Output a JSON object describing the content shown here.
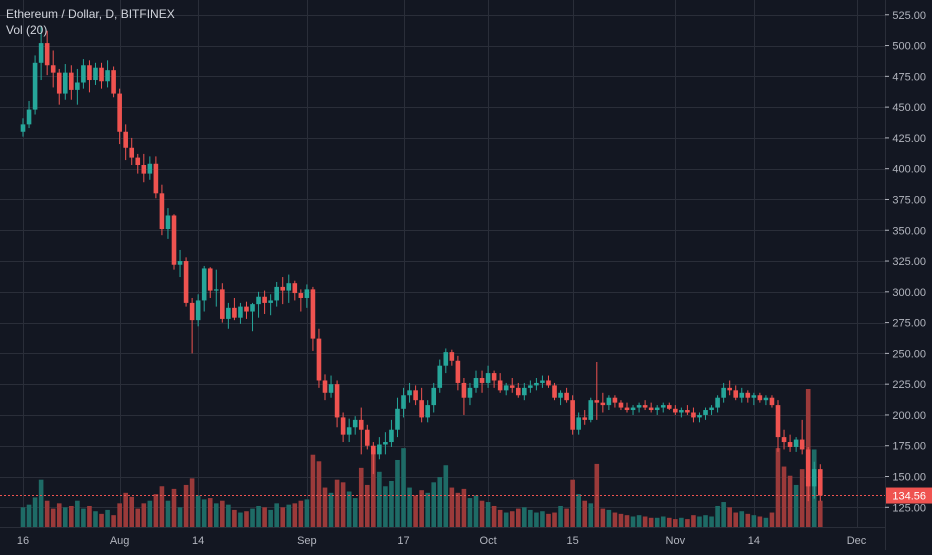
{
  "header": {
    "symbol_line": "Ethereum / Dollar, D, BITFINEX",
    "indicator_line": "Vol (20)"
  },
  "colors": {
    "background": "#131722",
    "grid": "#2a2e39",
    "text": "#b2b5be",
    "up": "#26a69a",
    "down": "#ef5350",
    "vol_up": "#1e6b66",
    "vol_down": "#9b3a3a",
    "price_line": "#ef5350"
  },
  "chart_data": {
    "type": "candlestick",
    "title": "Ethereum / Dollar, D, BITFINEX",
    "y_axis_ticks": [
      "525.00",
      "500.00",
      "475.00",
      "450.00",
      "425.00",
      "400.00",
      "375.00",
      "350.00",
      "325.00",
      "300.00",
      "275.00",
      "250.00",
      "225.00",
      "200.00",
      "175.00",
      "150.00",
      "125.00"
    ],
    "y_tick_values": [
      525,
      500,
      475,
      450,
      425,
      400,
      375,
      350,
      325,
      300,
      275,
      250,
      225,
      200,
      175,
      150,
      125
    ],
    "ylim": [
      109,
      537
    ],
    "x_axis_labels": [
      {
        "label": "16",
        "index": 0
      },
      {
        "label": "Aug",
        "index": 16
      },
      {
        "label": "14",
        "index": 29
      },
      {
        "label": "Sep",
        "index": 47
      },
      {
        "label": "17",
        "index": 63
      },
      {
        "label": "Oct",
        "index": 77
      },
      {
        "label": "15",
        "index": 91
      },
      {
        "label": "Nov",
        "index": 108
      },
      {
        "label": "14",
        "index": 121
      },
      {
        "label": "Dec",
        "index": 138
      }
    ],
    "last_price": 134.56,
    "last_price_label": "134.56",
    "series_ohlc_v": [
      [
        430,
        441,
        426,
        436,
        30
      ],
      [
        436,
        455,
        433,
        448,
        34
      ],
      [
        448,
        492,
        444,
        486,
        45
      ],
      [
        486,
        516,
        472,
        502,
        72
      ],
      [
        502,
        512,
        476,
        484,
        40
      ],
      [
        484,
        496,
        466,
        478,
        28
      ],
      [
        478,
        481,
        452,
        461,
        36
      ],
      [
        461,
        485,
        456,
        478,
        30
      ],
      [
        478,
        484,
        456,
        464,
        32
      ],
      [
        464,
        481,
        452,
        470,
        40
      ],
      [
        470,
        489,
        465,
        484,
        28
      ],
      [
        484,
        488,
        462,
        472,
        32
      ],
      [
        472,
        486,
        468,
        482,
        24
      ],
      [
        482,
        486,
        465,
        471,
        20
      ],
      [
        471,
        488,
        466,
        480,
        26
      ],
      [
        480,
        483,
        458,
        461,
        18
      ],
      [
        461,
        465,
        420,
        430,
        36
      ],
      [
        430,
        436,
        407,
        417,
        52
      ],
      [
        417,
        425,
        403,
        409,
        46
      ],
      [
        409,
        412,
        396,
        403,
        28
      ],
      [
        403,
        412,
        389,
        396,
        36
      ],
      [
        396,
        410,
        391,
        404,
        40
      ],
      [
        404,
        410,
        376,
        380,
        50
      ],
      [
        380,
        387,
        346,
        351,
        62
      ],
      [
        351,
        368,
        343,
        362,
        40
      ],
      [
        362,
        363,
        318,
        322,
        58
      ],
      [
        322,
        334,
        312,
        325,
        30
      ],
      [
        325,
        328,
        288,
        291,
        64
      ],
      [
        291,
        295,
        250,
        277,
        74
      ],
      [
        277,
        298,
        272,
        293,
        48
      ],
      [
        293,
        321,
        284,
        319,
        42
      ],
      [
        319,
        320,
        295,
        301,
        44
      ],
      [
        301,
        318,
        288,
        302,
        36
      ],
      [
        302,
        307,
        275,
        278,
        40
      ],
      [
        278,
        291,
        270,
        287,
        34
      ],
      [
        287,
        295,
        277,
        279,
        26
      ],
      [
        279,
        291,
        274,
        288,
        22
      ],
      [
        288,
        292,
        278,
        284,
        24
      ],
      [
        284,
        291,
        268,
        290,
        28
      ],
      [
        290,
        300,
        279,
        296,
        32
      ],
      [
        296,
        301,
        282,
        291,
        30
      ],
      [
        291,
        298,
        281,
        293,
        26
      ],
      [
        293,
        308,
        288,
        304,
        36
      ],
      [
        304,
        312,
        290,
        301,
        30
      ],
      [
        301,
        314,
        291,
        307,
        34
      ],
      [
        307,
        309,
        293,
        299,
        36
      ],
      [
        299,
        302,
        284,
        295,
        40
      ],
      [
        295,
        306,
        287,
        302,
        42
      ],
      [
        302,
        304,
        252,
        262,
        110
      ],
      [
        262,
        270,
        222,
        228,
        100
      ],
      [
        228,
        233,
        212,
        218,
        60
      ],
      [
        218,
        232,
        214,
        225,
        52
      ],
      [
        225,
        228,
        190,
        198,
        72
      ],
      [
        198,
        202,
        178,
        184,
        68
      ],
      [
        184,
        197,
        178,
        190,
        54
      ],
      [
        190,
        199,
        184,
        196,
        44
      ],
      [
        196,
        206,
        168,
        188,
        90
      ],
      [
        188,
        192,
        172,
        175,
        64
      ],
      [
        175,
        178,
        152,
        168,
        120
      ],
      [
        168,
        182,
        164,
        176,
        84
      ],
      [
        176,
        186,
        168,
        178,
        62
      ],
      [
        178,
        196,
        174,
        188,
        70
      ],
      [
        188,
        214,
        182,
        205,
        102
      ],
      [
        205,
        222,
        198,
        216,
        120
      ],
      [
        216,
        226,
        210,
        220,
        60
      ],
      [
        220,
        224,
        208,
        212,
        48
      ],
      [
        212,
        222,
        194,
        198,
        56
      ],
      [
        198,
        212,
        194,
        208,
        52
      ],
      [
        208,
        226,
        202,
        222,
        68
      ],
      [
        222,
        245,
        218,
        240,
        76
      ],
      [
        240,
        254,
        234,
        251,
        94
      ],
      [
        251,
        253,
        240,
        244,
        60
      ],
      [
        244,
        248,
        220,
        226,
        52
      ],
      [
        226,
        230,
        200,
        214,
        58
      ],
      [
        214,
        226,
        208,
        222,
        44
      ],
      [
        222,
        236,
        218,
        230,
        48
      ],
      [
        230,
        236,
        218,
        226,
        40
      ],
      [
        226,
        240,
        222,
        234,
        38
      ],
      [
        234,
        236,
        222,
        228,
        32
      ],
      [
        228,
        234,
        218,
        220,
        26
      ],
      [
        220,
        226,
        216,
        224,
        22
      ],
      [
        224,
        230,
        218,
        222,
        24
      ],
      [
        222,
        226,
        214,
        216,
        28
      ],
      [
        216,
        226,
        212,
        222,
        30
      ],
      [
        222,
        228,
        218,
        224,
        26
      ],
      [
        224,
        230,
        220,
        226,
        22
      ],
      [
        226,
        232,
        222,
        228,
        24
      ],
      [
        228,
        232,
        222,
        224,
        20
      ],
      [
        224,
        226,
        212,
        214,
        22
      ],
      [
        214,
        220,
        208,
        218,
        32
      ],
      [
        218,
        222,
        210,
        212,
        28
      ],
      [
        212,
        216,
        184,
        188,
        72
      ],
      [
        188,
        202,
        184,
        198,
        50
      ],
      [
        198,
        204,
        192,
        196,
        40
      ],
      [
        196,
        214,
        194,
        212,
        36
      ],
      [
        212,
        243,
        196,
        210,
        96
      ],
      [
        210,
        218,
        202,
        208,
        28
      ],
      [
        208,
        216,
        204,
        214,
        26
      ],
      [
        214,
        216,
        206,
        210,
        22
      ],
      [
        210,
        212,
        204,
        206,
        20
      ],
      [
        206,
        210,
        202,
        204,
        18
      ],
      [
        204,
        208,
        200,
        206,
        16
      ],
      [
        206,
        210,
        202,
        208,
        18
      ],
      [
        208,
        212,
        204,
        206,
        16
      ],
      [
        206,
        210,
        202,
        204,
        14
      ],
      [
        204,
        208,
        200,
        206,
        14
      ],
      [
        206,
        210,
        202,
        208,
        16
      ],
      [
        208,
        210,
        204,
        205,
        14
      ],
      [
        205,
        208,
        200,
        202,
        12
      ],
      [
        202,
        206,
        198,
        204,
        14
      ],
      [
        204,
        208,
        200,
        202,
        12
      ],
      [
        202,
        206,
        194,
        198,
        18
      ],
      [
        198,
        202,
        194,
        200,
        16
      ],
      [
        200,
        206,
        196,
        204,
        18
      ],
      [
        204,
        208,
        200,
        206,
        16
      ],
      [
        206,
        216,
        202,
        214,
        32
      ],
      [
        214,
        226,
        210,
        222,
        38
      ],
      [
        222,
        228,
        216,
        220,
        30
      ],
      [
        220,
        224,
        212,
        214,
        22
      ],
      [
        214,
        222,
        210,
        218,
        24
      ],
      [
        218,
        220,
        210,
        214,
        20
      ],
      [
        214,
        218,
        208,
        216,
        18
      ],
      [
        216,
        218,
        210,
        212,
        16
      ],
      [
        212,
        216,
        208,
        214,
        14
      ],
      [
        214,
        216,
        206,
        208,
        22
      ],
      [
        208,
        212,
        170,
        182,
        120
      ],
      [
        182,
        188,
        172,
        178,
        92
      ],
      [
        178,
        184,
        170,
        174,
        78
      ],
      [
        174,
        182,
        170,
        180,
        64
      ],
      [
        180,
        196,
        168,
        172,
        88
      ],
      [
        172,
        174,
        130,
        142,
        210
      ],
      [
        142,
        162,
        132,
        156,
        118
      ],
      [
        156,
        160,
        130,
        134.56,
        40
      ]
    ]
  }
}
